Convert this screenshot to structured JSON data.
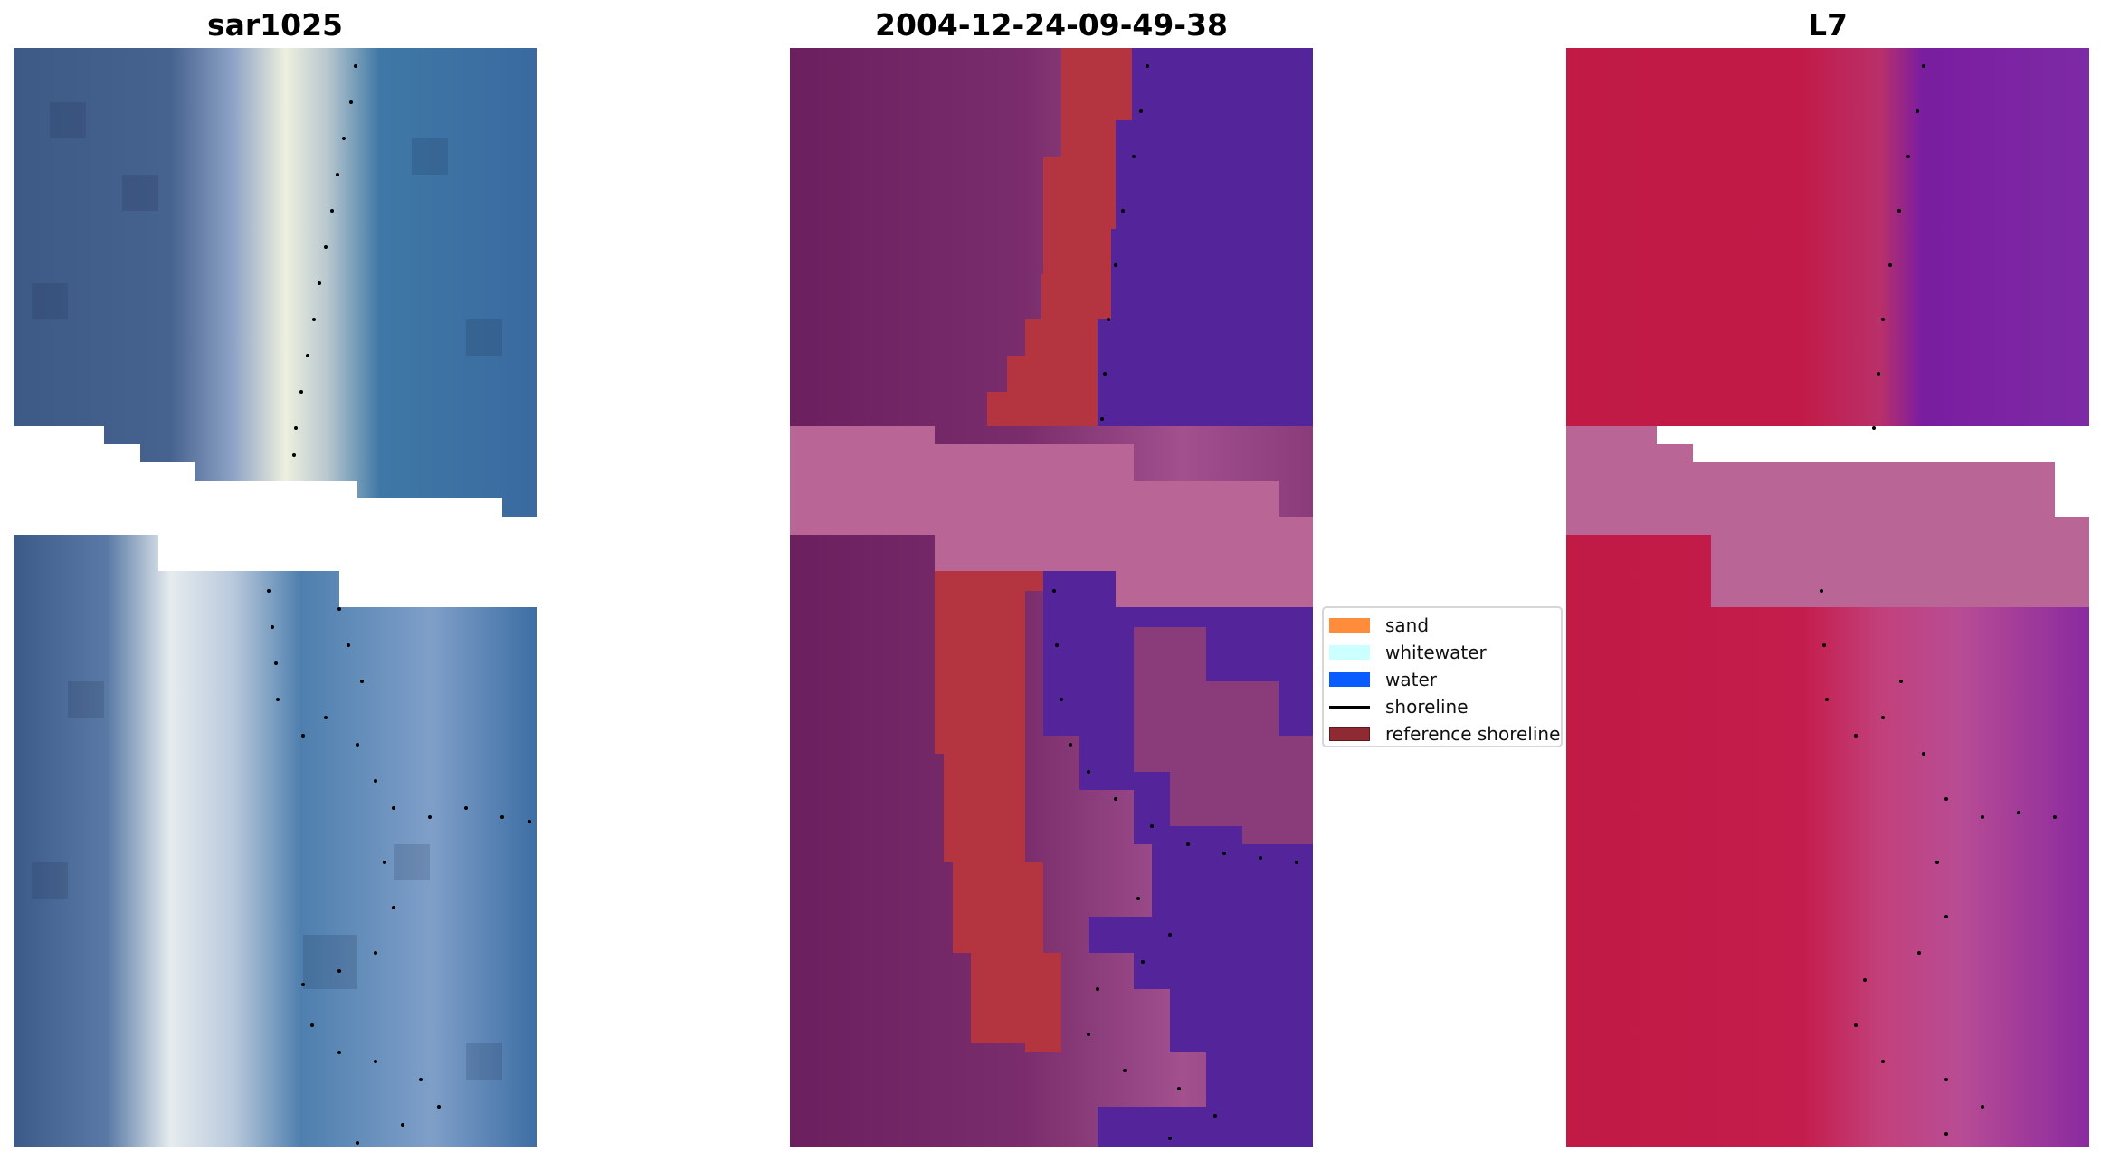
{
  "panels": [
    {
      "title": "sar1025",
      "kind": "rgb"
    },
    {
      "title": "2004-12-24-09-49-38",
      "kind": "classified"
    },
    {
      "title": "L7",
      "kind": "index"
    }
  ],
  "legend": {
    "items": [
      {
        "label": "sand",
        "type": "patch",
        "color": "#ff8c3a"
      },
      {
        "label": "whitewater",
        "type": "patch",
        "color": "#ccffff"
      },
      {
        "label": "water",
        "type": "patch",
        "color": "#0b5cff"
      },
      {
        "label": "shoreline",
        "type": "line",
        "color": "#000000"
      },
      {
        "label": "reference shoreline",
        "type": "patch",
        "color": "#8f2a33"
      }
    ]
  },
  "colors": {
    "rgb_land": "#3c5a8a",
    "rgb_sand": "#e8ecdc",
    "rgb_water": "#3a6fa4",
    "cls_land": "#6e2160",
    "cls_sand": "#b4343f",
    "cls_water": "#54259a",
    "cls_nodata": "#b96696",
    "idx_land": "#c01a45",
    "idx_water": "#7a1da0",
    "idx_nodata": "#b96696",
    "shoreline_dots": "#000000"
  }
}
